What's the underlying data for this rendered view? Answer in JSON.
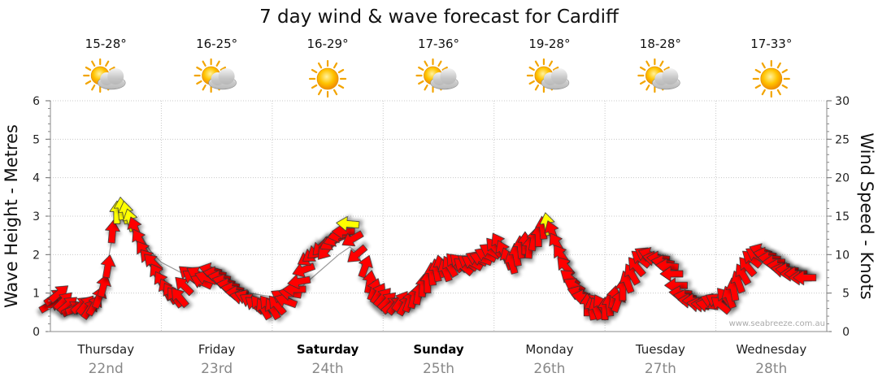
{
  "chart_data": {
    "type": "line",
    "title": "7 day wind & wave forecast for Cardiff",
    "ylabel_left": "Wave Height - Metres",
    "ylabel_right": "Wind Speed - Knots",
    "ylim_left": [
      0,
      6
    ],
    "ylim_right": [
      0,
      30
    ],
    "yticks_left": [
      "0",
      "1",
      "2",
      "3",
      "4",
      "5",
      "6"
    ],
    "yticks_right": [
      "0",
      "5",
      "10",
      "15",
      "20",
      "25",
      "30"
    ],
    "grid": true,
    "watermark": "www.seabreeze.com.au",
    "days": [
      {
        "name": "Thursday",
        "date": "22nd",
        "temp": "15-28°",
        "weather": "partly-cloudy",
        "bold": false
      },
      {
        "name": "Friday",
        "date": "23rd",
        "temp": "16-25°",
        "weather": "partly-cloudy",
        "bold": false
      },
      {
        "name": "Saturday",
        "date": "24th",
        "temp": "16-29°",
        "weather": "sunny",
        "bold": true
      },
      {
        "name": "Sunday",
        "date": "25th",
        "temp": "17-36°",
        "weather": "partly-cloudy",
        "bold": true
      },
      {
        "name": "Monday",
        "date": "26th",
        "temp": "19-28°",
        "weather": "partly-cloudy",
        "bold": false
      },
      {
        "name": "Tuesday",
        "date": "27th",
        "temp": "18-28°",
        "weather": "partly-cloudy",
        "bold": false
      },
      {
        "name": "Wednesday",
        "date": "28th",
        "temp": "17-33°",
        "weather": "sunny",
        "bold": false
      }
    ],
    "wind_series": {
      "name": "Wind Speed - Knots",
      "unit": "knots",
      "colors": {
        "normal": "#ff0000",
        "strong": "#ffff00"
      },
      "strong_threshold": 14,
      "points": [
        {
          "t": 0.0,
          "kn": 3.5,
          "dir": 240
        },
        {
          "t": 0.04,
          "kn": 4.5,
          "dir": 235
        },
        {
          "t": 0.08,
          "kn": 5.0,
          "dir": 230
        },
        {
          "t": 0.12,
          "kn": 4.0,
          "dir": 225
        },
        {
          "t": 0.16,
          "kn": 3.5,
          "dir": 230
        },
        {
          "t": 0.2,
          "kn": 3.0,
          "dir": 240
        },
        {
          "t": 0.24,
          "kn": 3.0,
          "dir": 250
        },
        {
          "t": 0.28,
          "kn": 3.5,
          "dir": 230
        },
        {
          "t": 0.32,
          "kn": 3.5,
          "dir": 220
        },
        {
          "t": 0.36,
          "kn": 3.0,
          "dir": 215
        },
        {
          "t": 0.4,
          "kn": 3.5,
          "dir": 210
        },
        {
          "t": 0.44,
          "kn": 4.5,
          "dir": 200
        },
        {
          "t": 0.48,
          "kn": 6.0,
          "dir": 195
        },
        {
          "t": 0.52,
          "kn": 8.5,
          "dir": 190
        },
        {
          "t": 0.56,
          "kn": 13.0,
          "dir": 185
        },
        {
          "t": 0.6,
          "kn": 15.5,
          "dir": 180
        },
        {
          "t": 0.64,
          "kn": 16.0,
          "dir": 175
        },
        {
          "t": 0.68,
          "kn": 15.5,
          "dir": 170
        },
        {
          "t": 0.72,
          "kn": 14.5,
          "dir": 165
        },
        {
          "t": 0.76,
          "kn": 13.5,
          "dir": 160
        },
        {
          "t": 0.8,
          "kn": 12.0,
          "dir": 150
        },
        {
          "t": 0.84,
          "kn": 10.5,
          "dir": 145
        },
        {
          "t": 0.88,
          "kn": 9.5,
          "dir": 140
        },
        {
          "t": 0.92,
          "kn": 9.0,
          "dir": 135
        },
        {
          "t": 0.96,
          "kn": 7.5,
          "dir": 150
        },
        {
          "t": 1.0,
          "kn": 6.5,
          "dir": 150
        },
        {
          "t": 1.04,
          "kn": 5.5,
          "dir": 155
        },
        {
          "t": 1.08,
          "kn": 5.0,
          "dir": 150
        },
        {
          "t": 1.12,
          "kn": 4.5,
          "dir": 145
        },
        {
          "t": 1.16,
          "kn": 4.5,
          "dir": 140
        },
        {
          "t": 1.2,
          "kn": 6.0,
          "dir": 135
        },
        {
          "t": 1.24,
          "kn": 7.5,
          "dir": 130
        },
        {
          "t": 1.28,
          "kn": 7.0,
          "dir": 125
        },
        {
          "t": 1.32,
          "kn": 7.5,
          "dir": 120
        },
        {
          "t": 1.36,
          "kn": 6.5,
          "dir": 115
        },
        {
          "t": 1.4,
          "kn": 7.0,
          "dir": 110
        },
        {
          "t": 1.44,
          "kn": 8.0,
          "dir": 105
        },
        {
          "t": 1.48,
          "kn": 7.5,
          "dir": 100
        },
        {
          "t": 1.52,
          "kn": 7.0,
          "dir": 100
        },
        {
          "t": 1.56,
          "kn": 6.5,
          "dir": 105
        },
        {
          "t": 1.6,
          "kn": 6.0,
          "dir": 100
        },
        {
          "t": 1.64,
          "kn": 5.5,
          "dir": 100
        },
        {
          "t": 1.68,
          "kn": 5.0,
          "dir": 95
        },
        {
          "t": 1.72,
          "kn": 4.5,
          "dir": 100
        },
        {
          "t": 1.76,
          "kn": 4.5,
          "dir": 110
        },
        {
          "t": 1.8,
          "kn": 4.0,
          "dir": 120
        },
        {
          "t": 1.84,
          "kn": 3.5,
          "dir": 130
        },
        {
          "t": 1.88,
          "kn": 3.5,
          "dir": 140
        },
        {
          "t": 1.92,
          "kn": 3.0,
          "dir": 150
        },
        {
          "t": 1.96,
          "kn": 3.5,
          "dir": 140
        },
        {
          "t": 2.0,
          "kn": 3.0,
          "dir": 150
        },
        {
          "t": 2.04,
          "kn": 3.5,
          "dir": 140
        },
        {
          "t": 2.08,
          "kn": 4.5,
          "dir": 120
        },
        {
          "t": 2.12,
          "kn": 4.0,
          "dir": 110
        },
        {
          "t": 2.16,
          "kn": 5.0,
          "dir": 100
        },
        {
          "t": 2.2,
          "kn": 5.5,
          "dir": 90
        },
        {
          "t": 2.24,
          "kn": 6.5,
          "dir": 80
        },
        {
          "t": 2.28,
          "kn": 8.0,
          "dir": 70
        },
        {
          "t": 2.32,
          "kn": 9.5,
          "dir": 60
        },
        {
          "t": 2.36,
          "kn": 10.0,
          "dir": 55
        },
        {
          "t": 2.4,
          "kn": 10.5,
          "dir": 50
        },
        {
          "t": 2.44,
          "kn": 11.0,
          "dir": 45
        },
        {
          "t": 2.48,
          "kn": 10.5,
          "dir": 40
        },
        {
          "t": 2.52,
          "kn": 11.5,
          "dir": 60
        },
        {
          "t": 2.56,
          "kn": 12.0,
          "dir": 70
        },
        {
          "t": 2.6,
          "kn": 12.5,
          "dir": 80
        },
        {
          "t": 2.64,
          "kn": 13.0,
          "dir": 90
        },
        {
          "t": 2.68,
          "kn": 14.0,
          "dir": 95
        },
        {
          "t": 2.72,
          "kn": 12.0,
          "dir": 60
        },
        {
          "t": 2.76,
          "kn": 10.0,
          "dir": 50
        },
        {
          "t": 2.84,
          "kn": 8.5,
          "dir": 200
        },
        {
          "t": 2.88,
          "kn": 6.5,
          "dir": 190
        },
        {
          "t": 2.92,
          "kn": 5.5,
          "dir": 200
        },
        {
          "t": 2.96,
          "kn": 5.0,
          "dir": 210
        },
        {
          "t": 3.0,
          "kn": 4.5,
          "dir": 220
        },
        {
          "t": 3.04,
          "kn": 4.0,
          "dir": 225
        },
        {
          "t": 3.08,
          "kn": 3.5,
          "dir": 230
        },
        {
          "t": 3.12,
          "kn": 3.5,
          "dir": 220
        },
        {
          "t": 3.16,
          "kn": 4.0,
          "dir": 215
        },
        {
          "t": 3.2,
          "kn": 3.5,
          "dir": 210
        },
        {
          "t": 3.24,
          "kn": 4.0,
          "dir": 200
        },
        {
          "t": 3.28,
          "kn": 4.5,
          "dir": 195
        },
        {
          "t": 3.32,
          "kn": 5.0,
          "dir": 190
        },
        {
          "t": 3.36,
          "kn": 6.0,
          "dir": 185
        },
        {
          "t": 3.4,
          "kn": 6.5,
          "dir": 180
        },
        {
          "t": 3.44,
          "kn": 7.5,
          "dir": 175
        },
        {
          "t": 3.48,
          "kn": 8.0,
          "dir": 170
        },
        {
          "t": 3.52,
          "kn": 8.5,
          "dir": 165
        },
        {
          "t": 3.56,
          "kn": 8.0,
          "dir": 160
        },
        {
          "t": 3.6,
          "kn": 8.5,
          "dir": 150
        },
        {
          "t": 3.64,
          "kn": 9.0,
          "dir": 140
        },
        {
          "t": 3.68,
          "kn": 9.0,
          "dir": 135
        },
        {
          "t": 3.72,
          "kn": 8.5,
          "dir": 130
        },
        {
          "t": 3.76,
          "kn": 9.0,
          "dir": 125
        },
        {
          "t": 3.8,
          "kn": 9.0,
          "dir": 120
        },
        {
          "t": 3.84,
          "kn": 9.5,
          "dir": 115
        },
        {
          "t": 3.88,
          "kn": 9.5,
          "dir": 110
        },
        {
          "t": 3.92,
          "kn": 10.0,
          "dir": 115
        },
        {
          "t": 3.96,
          "kn": 10.5,
          "dir": 120
        },
        {
          "t": 4.0,
          "kn": 11.0,
          "dir": 140
        },
        {
          "t": 4.04,
          "kn": 11.5,
          "dir": 150
        },
        {
          "t": 4.08,
          "kn": 10.5,
          "dir": 155
        },
        {
          "t": 4.12,
          "kn": 9.5,
          "dir": 160
        },
        {
          "t": 4.16,
          "kn": 9.0,
          "dir": 165
        },
        {
          "t": 4.2,
          "kn": 10.0,
          "dir": 170
        },
        {
          "t": 4.24,
          "kn": 11.0,
          "dir": 175
        },
        {
          "t": 4.28,
          "kn": 11.5,
          "dir": 180
        },
        {
          "t": 4.32,
          "kn": 11.0,
          "dir": 185
        },
        {
          "t": 4.36,
          "kn": 12.0,
          "dir": 190
        },
        {
          "t": 4.4,
          "kn": 12.5,
          "dir": 180
        },
        {
          "t": 4.44,
          "kn": 13.5,
          "dir": 175
        },
        {
          "t": 4.48,
          "kn": 14.0,
          "dir": 170
        },
        {
          "t": 4.52,
          "kn": 13.0,
          "dir": 160
        },
        {
          "t": 4.56,
          "kn": 11.5,
          "dir": 150
        },
        {
          "t": 4.6,
          "kn": 10.0,
          "dir": 145
        },
        {
          "t": 4.64,
          "kn": 8.5,
          "dir": 140
        },
        {
          "t": 4.68,
          "kn": 7.0,
          "dir": 130
        },
        {
          "t": 4.72,
          "kn": 6.0,
          "dir": 120
        },
        {
          "t": 4.76,
          "kn": 5.0,
          "dir": 110
        },
        {
          "t": 4.8,
          "kn": 4.5,
          "dir": 100
        },
        {
          "t": 4.84,
          "kn": 3.5,
          "dir": 180
        },
        {
          "t": 4.88,
          "kn": 3.0,
          "dir": 170
        },
        {
          "t": 4.92,
          "kn": 3.0,
          "dir": 160
        },
        {
          "t": 4.96,
          "kn": 3.5,
          "dir": 150
        },
        {
          "t": 5.0,
          "kn": 3.0,
          "dir": 180
        },
        {
          "t": 5.04,
          "kn": 3.5,
          "dir": 175
        },
        {
          "t": 5.08,
          "kn": 4.5,
          "dir": 190
        },
        {
          "t": 5.12,
          "kn": 4.0,
          "dir": 200
        },
        {
          "t": 5.16,
          "kn": 5.5,
          "dir": 180
        },
        {
          "t": 5.2,
          "kn": 6.5,
          "dir": 160
        },
        {
          "t": 5.24,
          "kn": 7.5,
          "dir": 150
        },
        {
          "t": 5.28,
          "kn": 8.5,
          "dir": 140
        },
        {
          "t": 5.32,
          "kn": 9.5,
          "dir": 130
        },
        {
          "t": 5.36,
          "kn": 10.0,
          "dir": 120
        },
        {
          "t": 5.4,
          "kn": 10.0,
          "dir": 110
        },
        {
          "t": 5.44,
          "kn": 9.5,
          "dir": 100
        },
        {
          "t": 5.48,
          "kn": 9.5,
          "dir": 95
        },
        {
          "t": 5.52,
          "kn": 9.0,
          "dir": 100
        },
        {
          "t": 5.56,
          "kn": 8.5,
          "dir": 95
        },
        {
          "t": 5.6,
          "kn": 7.5,
          "dir": 90
        },
        {
          "t": 5.64,
          "kn": 6.0,
          "dir": 90
        },
        {
          "t": 5.68,
          "kn": 5.0,
          "dir": 95
        },
        {
          "t": 5.72,
          "kn": 4.5,
          "dir": 100
        },
        {
          "t": 5.76,
          "kn": 4.0,
          "dir": 95
        },
        {
          "t": 5.8,
          "kn": 4.0,
          "dir": 90
        },
        {
          "t": 5.84,
          "kn": 3.5,
          "dir": 100
        },
        {
          "t": 5.88,
          "kn": 3.5,
          "dir": 95
        },
        {
          "t": 5.92,
          "kn": 3.5,
          "dir": 100
        },
        {
          "t": 5.96,
          "kn": 4.0,
          "dir": 110
        },
        {
          "t": 6.0,
          "kn": 4.0,
          "dir": 120
        },
        {
          "t": 6.04,
          "kn": 3.5,
          "dir": 130
        },
        {
          "t": 6.08,
          "kn": 4.5,
          "dir": 140
        },
        {
          "t": 6.12,
          "kn": 4.5,
          "dir": 160
        },
        {
          "t": 6.16,
          "kn": 5.5,
          "dir": 170
        },
        {
          "t": 6.2,
          "kn": 6.5,
          "dir": 160
        },
        {
          "t": 6.24,
          "kn": 7.5,
          "dir": 150
        },
        {
          "t": 6.28,
          "kn": 8.5,
          "dir": 140
        },
        {
          "t": 6.32,
          "kn": 9.5,
          "dir": 130
        },
        {
          "t": 6.36,
          "kn": 10.0,
          "dir": 120
        },
        {
          "t": 6.4,
          "kn": 10.5,
          "dir": 110
        },
        {
          "t": 6.44,
          "kn": 10.0,
          "dir": 100
        },
        {
          "t": 6.48,
          "kn": 9.5,
          "dir": 95
        },
        {
          "t": 6.52,
          "kn": 9.0,
          "dir": 90
        },
        {
          "t": 6.56,
          "kn": 8.5,
          "dir": 95
        },
        {
          "t": 6.6,
          "kn": 8.0,
          "dir": 100
        },
        {
          "t": 6.64,
          "kn": 8.0,
          "dir": 95
        },
        {
          "t": 6.68,
          "kn": 7.5,
          "dir": 90
        },
        {
          "t": 6.72,
          "kn": 7.5,
          "dir": 90
        },
        {
          "t": 6.76,
          "kn": 7.0,
          "dir": 90
        },
        {
          "t": 6.8,
          "kn": 7.0,
          "dir": 90
        }
      ]
    },
    "wave_series": {
      "name": "Wave Height - Metres",
      "unit": "m",
      "color": "#999999",
      "points": [
        {
          "t": 0.5,
          "m": 1.5
        },
        {
          "t": 0.56,
          "m": 2.5
        },
        {
          "t": 0.62,
          "m": 3.1
        },
        {
          "t": 0.7,
          "m": 3.2
        },
        {
          "t": 0.8,
          "m": 2.6
        },
        {
          "t": 0.9,
          "m": 2.1
        },
        {
          "t": 1.0,
          "m": 1.8
        },
        {
          "t": 1.2,
          "m": 1.5
        },
        {
          "t": 1.4,
          "m": 1.4
        },
        {
          "t": 1.6,
          "m": 1.2
        },
        {
          "t": 1.8,
          "m": 1.0
        },
        {
          "t": 2.0,
          "m": 0.9
        },
        {
          "t": 2.2,
          "m": 1.0
        },
        {
          "t": 2.4,
          "m": 1.5
        },
        {
          "t": 2.6,
          "m": 2.0
        },
        {
          "t": 2.7,
          "m": 2.2
        },
        {
          "t": 2.78,
          "m": 2.0
        },
        {
          "t": 2.84,
          "m": 1.4
        },
        {
          "t": 2.92,
          "m": 1.0
        }
      ]
    }
  }
}
